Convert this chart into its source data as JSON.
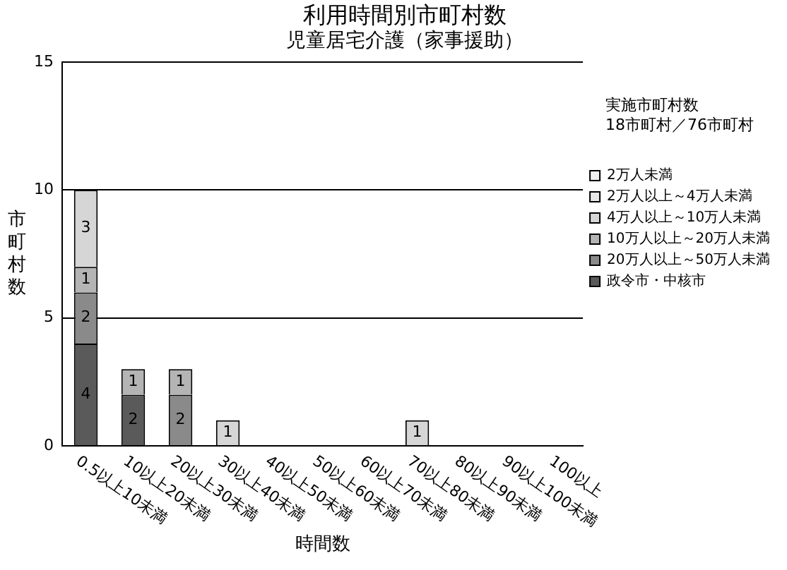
{
  "chart_data": {
    "type": "bar",
    "title": "利用時間別市町村数",
    "subtitle": "児童居宅介護（家事援助）",
    "xlabel": "時間数",
    "ylabel": "市町村数",
    "annotations": [
      "実施市町村数",
      "18市町村／76市町村"
    ],
    "categories": [
      "0.5以上10未満",
      "10以上20未満",
      "20以上30未満",
      "30以上40未満",
      "40以上50未満",
      "50以上60未満",
      "60以上70未満",
      "70以上80未満",
      "80以上90未満",
      "90以上100未満",
      "100以上"
    ],
    "stacked": true,
    "data_labels": true,
    "grid": "y",
    "legend": "right",
    "ylim": [
      0,
      15
    ],
    "yticks": [
      0,
      5,
      10,
      15
    ],
    "series": [
      {
        "name": "政令市・中核市",
        "color": "#5a5a5a",
        "values": [
          4,
          2,
          null,
          null,
          null,
          null,
          null,
          null,
          null,
          null,
          null
        ]
      },
      {
        "name": "20万人以上～50万人未満",
        "color": "#8a8a8a",
        "values": [
          2,
          null,
          2,
          null,
          null,
          null,
          null,
          null,
          null,
          null,
          null
        ]
      },
      {
        "name": "10万人以上～20万人未満",
        "color": "#b4b4b4",
        "values": [
          1,
          1,
          1,
          null,
          null,
          null,
          null,
          null,
          null,
          null,
          null
        ]
      },
      {
        "name": "4万人以上～10万人未満",
        "color": "#d6d6d6",
        "values": [
          3,
          null,
          null,
          1,
          null,
          null,
          null,
          1,
          null,
          null,
          null
        ]
      },
      {
        "name": "2万人以上～4万人未満",
        "color": "#e6e6e6",
        "values": [
          null,
          null,
          null,
          null,
          null,
          null,
          null,
          null,
          null,
          null,
          null
        ]
      },
      {
        "name": "2万人未満",
        "color": "#f2f2f2",
        "values": [
          null,
          null,
          null,
          null,
          null,
          null,
          null,
          null,
          null,
          null,
          null
        ]
      }
    ]
  }
}
